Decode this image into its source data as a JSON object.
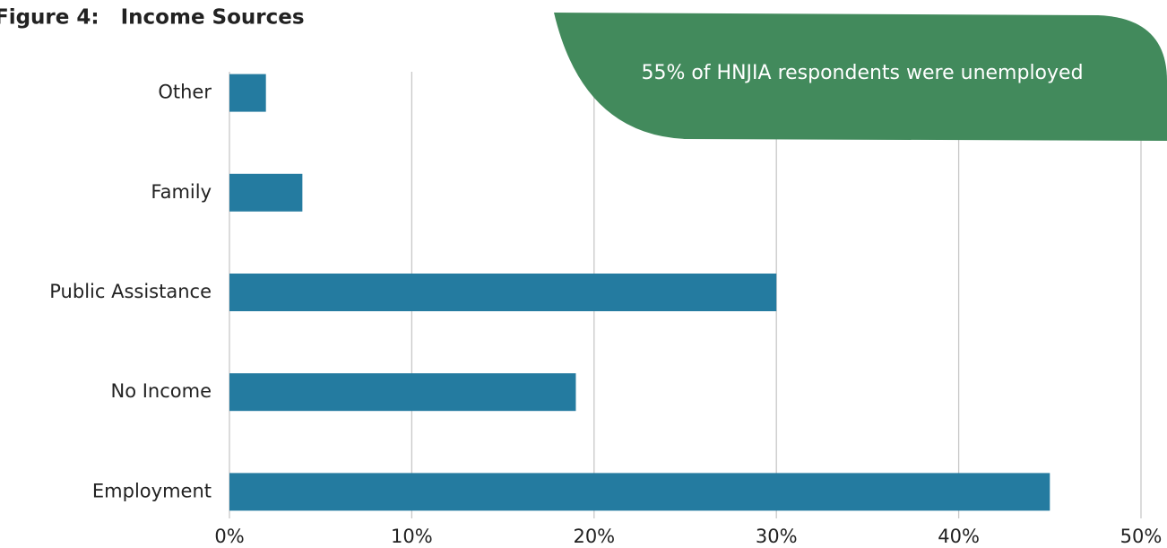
{
  "chart_data": {
    "type": "bar",
    "orientation": "horizontal",
    "title": "Figure 4:   Income Sources",
    "annotation": "55% of HNJIA respondents were unemployed",
    "categories": [
      "Employment",
      "No Income",
      "Public Assistance",
      "Family",
      "Other"
    ],
    "values": [
      45,
      19,
      30,
      4,
      2
    ],
    "color": "#247ba0",
    "annotation_color": "#428a5c",
    "xlim": [
      0,
      50
    ],
    "xticks": [
      {
        "value": 0,
        "label": "0%"
      },
      {
        "value": 10,
        "label": "10%"
      },
      {
        "value": 20,
        "label": "20%"
      },
      {
        "value": 30,
        "label": "30%"
      },
      {
        "value": 40,
        "label": "40%"
      },
      {
        "value": 50,
        "label": "50%"
      }
    ],
    "grid": true
  }
}
